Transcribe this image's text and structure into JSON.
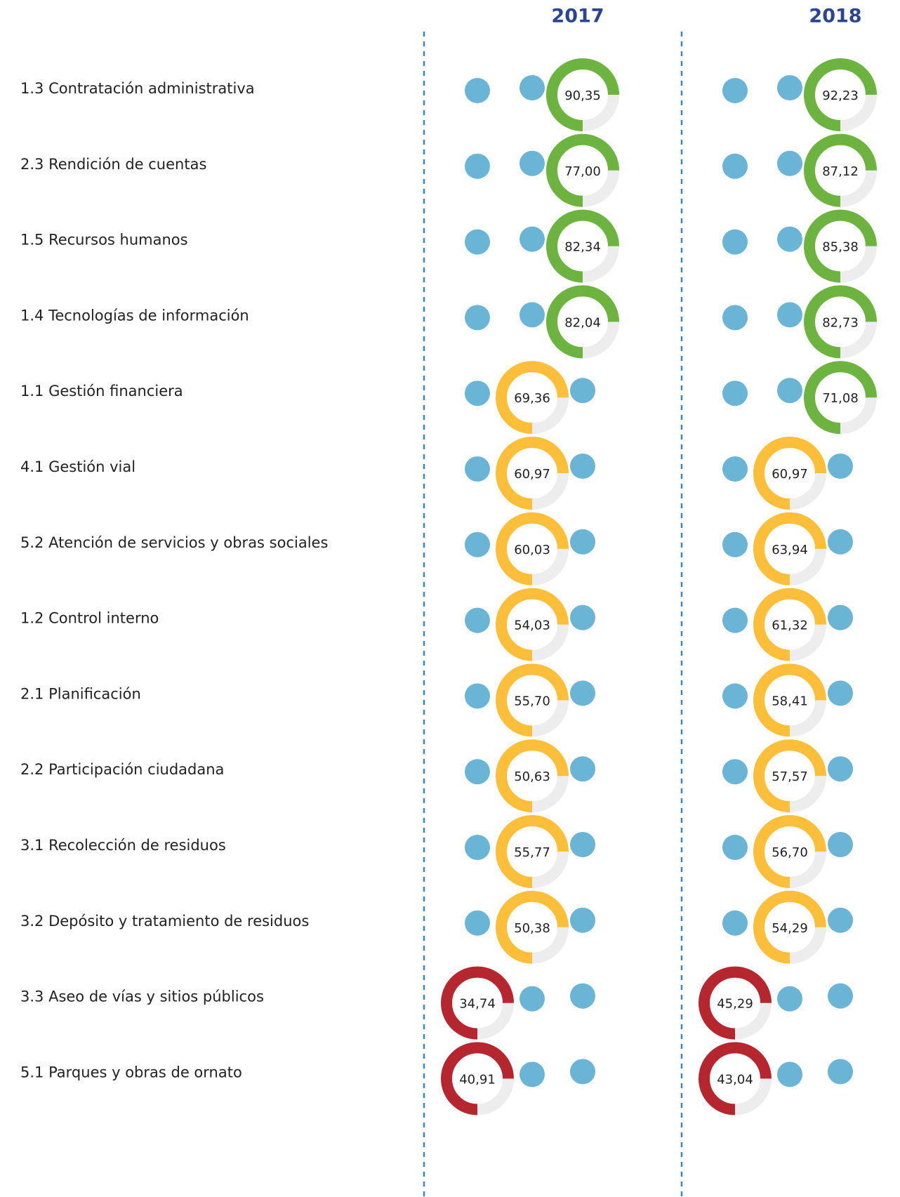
{
  "years": [
    "2017",
    "2018"
  ],
  "palette": [
    "#b5262e",
    "#fdbf3a",
    "#6cb33f"
  ],
  "dot_color": "#6ab4d6",
  "rows": [
    {
      "label": "1.3 Contratación administrativa",
      "values": [
        90.35,
        92.23
      ],
      "value_labels": [
        "90,35",
        "92,23"
      ],
      "colors": [
        "#6cb33f",
        "#6cb33f"
      ]
    },
    {
      "label": "2.3 Rendición de cuentas",
      "values": [
        77.0,
        87.12
      ],
      "value_labels": [
        "77,00",
        "87,12"
      ],
      "colors": [
        "#6cb33f",
        "#6cb33f"
      ]
    },
    {
      "label": "1.5 Recursos humanos",
      "values": [
        82.34,
        85.38
      ],
      "value_labels": [
        "82,34",
        "85,38"
      ],
      "colors": [
        "#6cb33f",
        "#6cb33f"
      ]
    },
    {
      "label": "1.4 Tecnologías de información",
      "values": [
        82.04,
        82.73
      ],
      "value_labels": [
        "82,04",
        "82,73"
      ],
      "colors": [
        "#6cb33f",
        "#6cb33f"
      ]
    },
    {
      "label": "1.1 Gestión financiera",
      "values": [
        69.36,
        71.08
      ],
      "value_labels": [
        "69,36",
        "71,08"
      ],
      "colors": [
        "#fdbf3a",
        "#6cb33f"
      ]
    },
    {
      "label": "4.1 Gestión vial",
      "values": [
        60.97,
        60.97
      ],
      "value_labels": [
        "60,97",
        "60,97"
      ],
      "colors": [
        "#fdbf3a",
        "#fdbf3a"
      ]
    },
    {
      "label": "5.2 Atención de servicios y obras sociales",
      "values": [
        60.03,
        63.94
      ],
      "value_labels": [
        "60,03",
        "63,94"
      ],
      "colors": [
        "#fdbf3a",
        "#fdbf3a"
      ]
    },
    {
      "label": "1.2 Control interno",
      "values": [
        54.03,
        61.32
      ],
      "value_labels": [
        "54,03",
        "61,32"
      ],
      "colors": [
        "#fdbf3a",
        "#fdbf3a"
      ]
    },
    {
      "label": "2.1 Planificación",
      "values": [
        55.7,
        58.41
      ],
      "value_labels": [
        "55,70",
        "58,41"
      ],
      "colors": [
        "#fdbf3a",
        "#fdbf3a"
      ]
    },
    {
      "label": "2.2 Participación ciudadana",
      "values": [
        50.63,
        57.57
      ],
      "value_labels": [
        "50,63",
        "57,57"
      ],
      "colors": [
        "#fdbf3a",
        "#fdbf3a"
      ]
    },
    {
      "label": "3.1 Recolección de residuos",
      "values": [
        55.77,
        56.7
      ],
      "value_labels": [
        "55,77",
        "56,70"
      ],
      "colors": [
        "#fdbf3a",
        "#fdbf3a"
      ]
    },
    {
      "label": "3.2 Depósito y tratamiento de residuos",
      "values": [
        50.38,
        54.29
      ],
      "value_labels": [
        "50,38",
        "54,29"
      ],
      "colors": [
        "#fdbf3a",
        "#fdbf3a"
      ]
    },
    {
      "label": "3.3 Aseo de vías y sitios públicos",
      "values": [
        34.74,
        45.29
      ],
      "value_labels": [
        "34,74",
        "45,29"
      ],
      "colors": [
        "#b5262e",
        "#b5262e"
      ]
    },
    {
      "label": "5.1 Parques y obras de ornato",
      "values": [
        40.91,
        43.04
      ],
      "value_labels": [
        "40,91",
        "43,04"
      ],
      "colors": [
        "#b5262e",
        "#b5262e"
      ]
    }
  ]
}
